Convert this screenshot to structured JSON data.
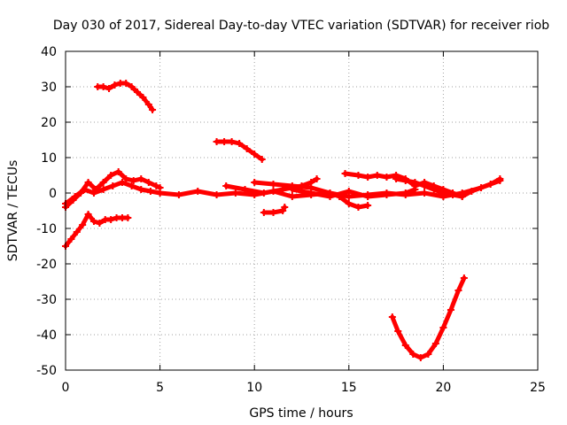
{
  "chart_data": {
    "type": "scatter",
    "title": "Day 030 of 2017, Sidereal Day-to-day VTEC variation (SDTVAR) for receiver riob",
    "xlabel": "GPS time / hours",
    "ylabel": "SDTVAR / TECUs",
    "xlim": [
      0,
      25
    ],
    "ylim": [
      -50,
      40
    ],
    "x_ticks": [
      "0",
      "5",
      "10",
      "15",
      "20",
      "25"
    ],
    "y_ticks": [
      "-50",
      "-40",
      "-30",
      "-20",
      "-10",
      "0",
      "10",
      "20",
      "30",
      "40"
    ],
    "grid": true,
    "legend": "none",
    "series_color": "#ff0000",
    "series": [
      {
        "x": [
          1.7,
          2.0,
          2.3,
          2.6,
          2.9,
          3.2,
          3.5,
          3.8,
          4.1,
          4.4,
          4.6
        ],
        "y": [
          30,
          30,
          29.5,
          30.5,
          31,
          31,
          30,
          28.5,
          27,
          25,
          23.5
        ]
      },
      {
        "x": [
          8.0,
          8.4,
          8.8,
          9.2,
          9.6,
          10.0,
          10.4
        ],
        "y": [
          14.5,
          14.5,
          14.5,
          14,
          12.5,
          11,
          9.5
        ]
      },
      {
        "x": [
          0.0,
          0.3,
          0.6,
          0.9,
          1.2,
          1.5,
          1.8,
          2.1,
          2.4,
          2.7,
          3.0,
          3.3
        ],
        "y": [
          -15,
          -13,
          -11,
          -9,
          -6,
          -8,
          -8.5,
          -7.5,
          -7.5,
          -7,
          -7,
          -7
        ]
      },
      {
        "x": [
          0.0,
          0.4,
          0.8,
          1.2,
          1.6,
          2.0,
          2.4,
          2.8,
          3.2,
          3.6,
          4.0,
          4.4,
          4.8,
          5.0
        ],
        "y": [
          -4,
          -2,
          0,
          3,
          1,
          3,
          5,
          6,
          4,
          3.5,
          4,
          3,
          2,
          1.5
        ]
      },
      {
        "x": [
          0.0,
          0.5,
          1.0,
          1.5,
          2.0,
          2.5,
          3.0,
          3.5,
          4.0,
          4.5,
          5.0,
          6.0,
          7.0,
          8.0,
          9.0,
          10.0,
          11.0,
          12.0,
          13.0,
          14.0,
          15.0,
          16.0,
          17.0,
          18.0,
          19.0,
          20.0,
          21.0,
          22.0,
          23.0
        ],
        "y": [
          -3,
          -1,
          1,
          0,
          1,
          2,
          3,
          2,
          1,
          0.5,
          0,
          -0.5,
          0.5,
          -0.5,
          0,
          -0.5,
          0.5,
          -1,
          -0.5,
          0,
          -1,
          -0.5,
          0,
          -0.5,
          0,
          -1,
          0,
          1.5,
          3.5
        ]
      },
      {
        "x": [
          8.5,
          9.5,
          10.5,
          11.5,
          12.5,
          13.0,
          13.3
        ],
        "y": [
          2,
          1,
          0,
          1,
          2,
          3,
          4
        ]
      },
      {
        "x": [
          10.0,
          11.0,
          12.0,
          13.0,
          14.0,
          14.5,
          15.0,
          15.5,
          16.0
        ],
        "y": [
          3,
          2.5,
          2,
          1.5,
          0,
          -1,
          -3,
          -4,
          -3.5
        ]
      },
      {
        "x": [
          10.5,
          11.0,
          11.5,
          11.6
        ],
        "y": [
          -5.5,
          -5.5,
          -5,
          -4
        ]
      },
      {
        "x": [
          12.0,
          13.0,
          14.0,
          15.0,
          16.0,
          17.0,
          18.0,
          18.5
        ],
        "y": [
          1,
          0,
          -1,
          0.5,
          -1,
          -0.5,
          0,
          1
        ]
      },
      {
        "x": [
          14.8,
          15.5,
          16.0,
          16.5,
          17.0,
          17.5,
          18.0,
          18.5,
          19.0,
          19.5,
          20.0,
          20.5,
          21.0,
          21.5,
          22.0,
          22.5,
          23.0
        ],
        "y": [
          5.5,
          5,
          4.5,
          5,
          4.5,
          5,
          4,
          2,
          3,
          2,
          1,
          0,
          -1,
          0.5,
          1.5,
          2.5,
          4
        ]
      },
      {
        "x": [
          17.5,
          18.0,
          18.5,
          19.0,
          19.5,
          20.0,
          20.5,
          21.0
        ],
        "y": [
          4,
          3.5,
          3,
          2,
          1,
          0,
          -0.5,
          -1
        ]
      },
      {
        "x": [
          17.3,
          17.6,
          18.0,
          18.4,
          18.8,
          19.2,
          19.6,
          20.0,
          20.4,
          20.8,
          21.1
        ],
        "y": [
          -35,
          -39,
          -43,
          -45.5,
          -46.5,
          -45.5,
          -42.5,
          -38,
          -33,
          -27.5,
          -24
        ]
      }
    ]
  }
}
